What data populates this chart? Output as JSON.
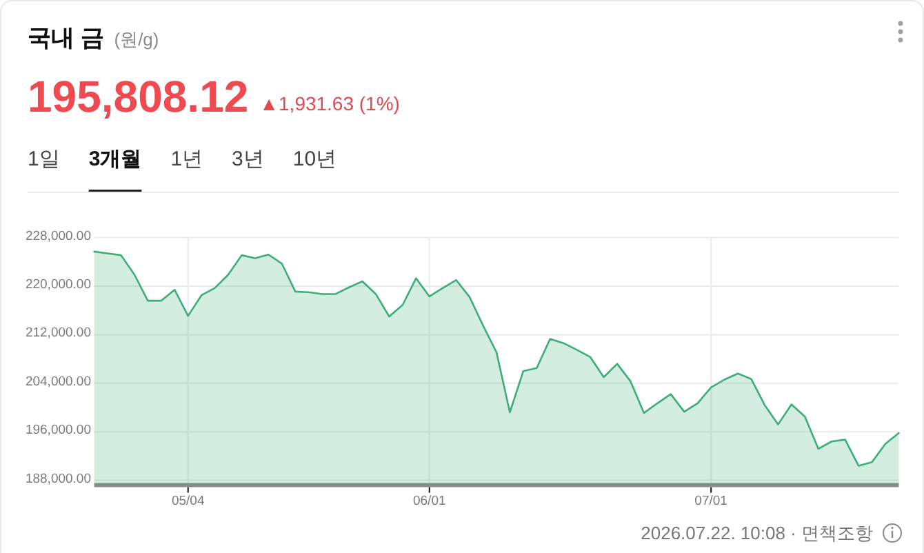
{
  "chart_data": {
    "type": "area",
    "title": "국내 금",
    "subtitle": "(원/g)",
    "annotations": [
      "195,808.12",
      "▲1,931.63 (1%)",
      "1일",
      "3개월",
      "1년",
      "3년",
      "10년",
      "2026.07.22. 10:08 · 면책조항"
    ],
    "categories": [
      null,
      null,
      null,
      null,
      null,
      null,
      null,
      "05/04",
      null,
      null,
      null,
      null,
      null,
      null,
      null,
      null,
      null,
      null,
      null,
      null,
      null,
      null,
      null,
      null,
      null,
      "06/01",
      null,
      null,
      null,
      null,
      null,
      null,
      null,
      null,
      null,
      null,
      null,
      null,
      null,
      null,
      null,
      null,
      null,
      null,
      null,
      null,
      "07/01",
      null,
      null,
      null,
      null,
      null,
      null,
      null,
      null,
      null,
      null,
      null,
      null,
      null,
      null
    ],
    "series": [
      {
        "color": "#3dae78",
        "values": [
          225700,
          225400,
          225100,
          221900,
          217600,
          217600,
          219400,
          215100,
          218500,
          219700,
          221900,
          225100,
          224600,
          225200,
          223700,
          219100,
          219000,
          218700,
          218700,
          219800,
          220800,
          218700,
          215000,
          216900,
          221300,
          218300,
          219700,
          221000,
          218200,
          213500,
          209100,
          199200,
          206000,
          206500,
          211300,
          210600,
          209500,
          208300,
          205000,
          207200,
          204300,
          199100,
          200700,
          202200,
          199300,
          200700,
          203300,
          204600,
          205600,
          204700,
          200400,
          197200,
          200500,
          198500,
          193200,
          194400,
          194700,
          190400,
          191000,
          194000,
          195800
        ]
      }
    ],
    "ylim": [
      187200,
      228000
    ],
    "yticks": [
      {
        "value": 188000,
        "label": "188,000.00"
      },
      {
        "value": 196000,
        "label": "196,000.00"
      },
      {
        "value": 204000,
        "label": "204,000.00"
      },
      {
        "value": 212000,
        "label": "212,000.00"
      },
      {
        "value": 220000,
        "label": "220,000.00"
      },
      {
        "value": 228000,
        "label": "228,000.00"
      }
    ],
    "grid": true
  }
}
